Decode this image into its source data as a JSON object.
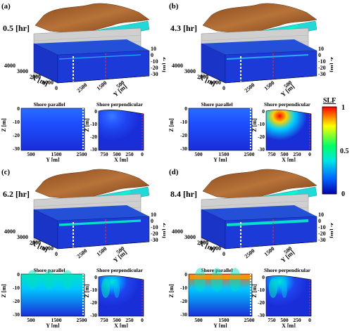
{
  "panels": [
    {
      "id": "a",
      "label": "(a)",
      "time": "0.5 [hr]",
      "plume3d": 0.05,
      "plume_parallel": 0.0,
      "plume_perp": 0.15
    },
    {
      "id": "b",
      "label": "(b)",
      "time": "4.3 [hr]",
      "plume3d": 0.25,
      "plume_parallel": 0.1,
      "plume_perp": 1.0
    },
    {
      "id": "c",
      "label": "(c)",
      "time": "6.2 [hr]",
      "plume3d": 0.55,
      "plume_parallel": 0.45,
      "plume_perp": 0.45
    },
    {
      "id": "d",
      "label": "(d)",
      "time": "8.4 [hr]",
      "plume3d": 0.75,
      "plume_parallel": 0.85,
      "plume_perp": 0.4
    }
  ],
  "axes3d": {
    "x_label": "X [m]",
    "y_label": "Y [m]",
    "z_label": "Z [m]",
    "x_ticks": [
      "4000",
      "3000",
      "2000",
      "1000",
      "0"
    ],
    "y_ticks": [
      "2500",
      "1500",
      "500"
    ],
    "z_ticks": [
      "10",
      "0",
      "-10",
      "-20",
      "-30"
    ]
  },
  "parallel": {
    "title": "Shore parallel",
    "x_label": "Y [m]",
    "y_label": "Z [m]",
    "x_ticks": [
      "500",
      "1500",
      "2500"
    ],
    "y_ticks": [
      "0",
      "-10",
      "-20",
      "-30"
    ]
  },
  "perpendicular": {
    "title": "Shore perpendicular",
    "x_label": "X [m]",
    "y_label": "Z [m]",
    "x_ticks": [
      "750",
      "500",
      "250",
      "0"
    ],
    "y_ticks": [
      "0",
      "-10",
      "-20",
      "-30"
    ]
  },
  "colorbar": {
    "title": "SLF",
    "ticks": [
      "1",
      "0.5",
      "0"
    ],
    "colors": [
      "#ff0000",
      "#ffff00",
      "#00ff66",
      "#00e5e5",
      "#0066ff",
      "#0000aa"
    ]
  }
}
